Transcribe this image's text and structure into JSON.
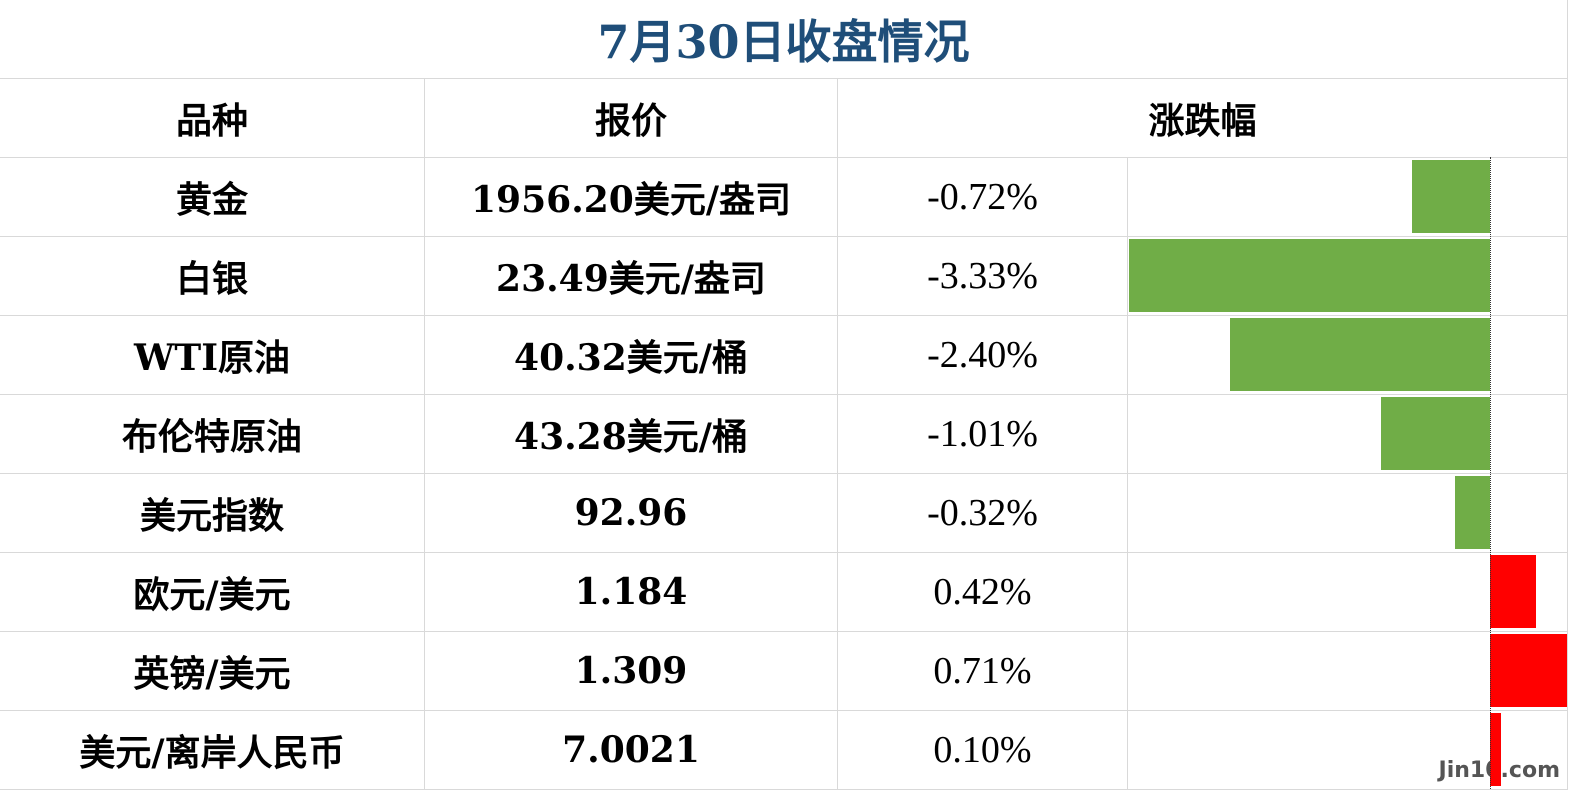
{
  "title": "7月30日收盘情况",
  "table": {
    "header": [
      "品种",
      "报价",
      "涨跌幅"
    ],
    "rows": [
      {
        "name": "黄金",
        "price": "1956.20美元/盎司",
        "change": -0.72,
        "change_label": "-0.72%"
      },
      {
        "name": "白银",
        "price": "23.49美元/盎司",
        "change": -3.33,
        "change_label": "-3.33%"
      },
      {
        "name": "WTI原油",
        "price": "40.32美元/桶",
        "change": -2.4,
        "change_label": "-2.40%"
      },
      {
        "name": "布伦特原油",
        "price": "43.28美元/桶",
        "change": -1.01,
        "change_label": "-1.01%"
      },
      {
        "name": "美元指数",
        "price": "92.96",
        "change": -0.32,
        "change_label": "-0.32%"
      },
      {
        "name": "欧元/美元",
        "price": "1.184",
        "change": 0.42,
        "change_label": "0.42%"
      },
      {
        "name": "英镑/美元",
        "price": "1.309",
        "change": 0.71,
        "change_label": "0.71%"
      },
      {
        "name": "美元/离岸人民币",
        "price": "7.0021",
        "change": 0.1,
        "change_label": "0.10%"
      }
    ],
    "up_color": "#ff0000",
    "down_color": "#70ad47"
  },
  "watermark": "Jin10.com"
}
